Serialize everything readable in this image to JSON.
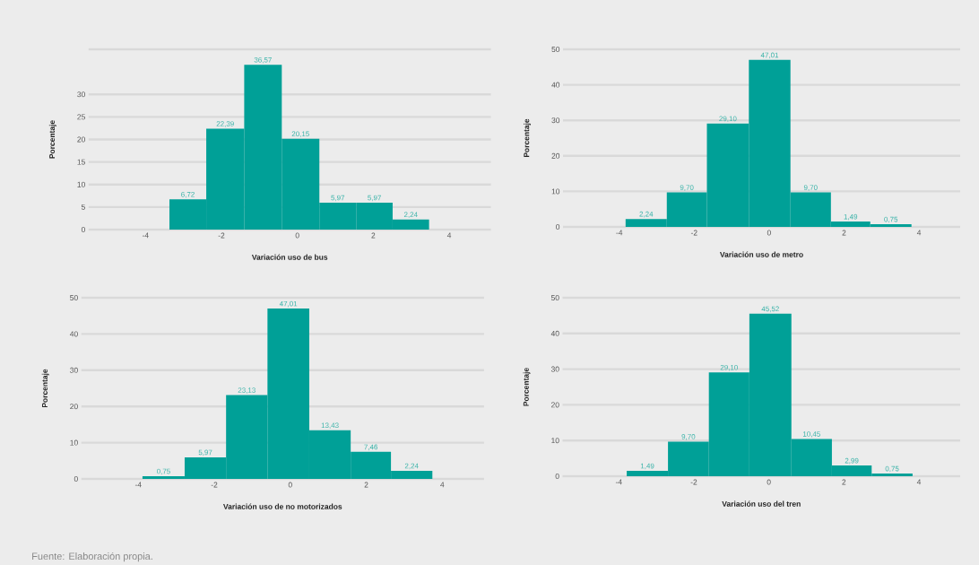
{
  "chart_data": [
    {
      "type": "histogram",
      "xlabel": "Variación uso de bus",
      "ylabel": "Porcentaje",
      "color": "#00a097",
      "grid": "y",
      "xlim": [
        -5.5,
        5.1
      ],
      "ylim": [
        0,
        40
      ],
      "xticks": [
        -4,
        -2,
        0,
        2,
        4
      ],
      "yticks": [
        0,
        5,
        10,
        15,
        20,
        25,
        30,
        {
          "value": 40,
          "label": null
        }
      ],
      "bins": [
        -3.37,
        -2.4,
        -1.4,
        -0.41,
        0.58,
        1.55,
        2.51,
        3.47
      ],
      "values": [
        6.72,
        22.39,
        36.57,
        20.15,
        5.97,
        5.97,
        2.24
      ],
      "value_labels": [
        "6,72",
        "22,39",
        "36,57",
        "20,15",
        "5,97",
        "5,97",
        "2,24"
      ]
    },
    {
      "type": "histogram",
      "xlabel": "Variación uso de metro",
      "ylabel": "Porcentaje",
      "color": "#00a097",
      "grid": "y",
      "xlim": [
        -5.5,
        5.1
      ],
      "ylim": [
        0,
        50
      ],
      "xticks": [
        -4,
        -2,
        0,
        2,
        4
      ],
      "yticks": [
        0,
        10,
        20,
        30,
        40,
        50
      ],
      "bins": [
        -3.83,
        -2.73,
        -1.66,
        -0.54,
        0.57,
        1.65,
        2.7,
        3.8
      ],
      "values": [
        2.24,
        9.7,
        29.1,
        47.01,
        9.7,
        1.49,
        0.75
      ],
      "value_labels": [
        "2,24",
        "9,70",
        "29,10",
        "47,01",
        "9,70",
        "1,49",
        "0,75"
      ]
    },
    {
      "type": "histogram",
      "xlabel": "Variación uso de no motorizados",
      "ylabel": "Porcentaje",
      "color": "#00a097",
      "grid": "y",
      "xlim": [
        -5.5,
        5.1
      ],
      "ylim": [
        0,
        50
      ],
      "xticks": [
        -4,
        -2,
        0,
        2,
        4
      ],
      "yticks": [
        0,
        10,
        20,
        30,
        40,
        50
      ],
      "bins": [
        -3.89,
        -2.78,
        -1.69,
        -0.6,
        0.5,
        1.59,
        2.65,
        3.74
      ],
      "values": [
        0.75,
        5.97,
        23.13,
        47.01,
        13.43,
        7.46,
        2.24
      ],
      "value_labels": [
        "0,75",
        "5,97",
        "23,13",
        "47,01",
        "13,43",
        "7,46",
        "2,24"
      ],
      "annotations": [
        "Fuente: Elaboración propia."
      ]
    },
    {
      "type": "histogram",
      "xlabel": "Variación uso del tren",
      "ylabel": "Porcentaje",
      "color": "#00a097",
      "grid": "y",
      "xlim": [
        -5.5,
        5.1
      ],
      "ylim": [
        0,
        50
      ],
      "xticks": [
        -4,
        -2,
        0,
        2,
        4
      ],
      "yticks": [
        0,
        10,
        20,
        30,
        40,
        50
      ],
      "bins": [
        -3.79,
        -2.69,
        -1.6,
        -0.52,
        0.6,
        1.68,
        2.74,
        3.83
      ],
      "values": [
        1.49,
        9.7,
        29.1,
        45.52,
        10.45,
        2.99,
        0.75
      ],
      "value_labels": [
        "1,49",
        "9,70",
        "29,10",
        "45,52",
        "10,45",
        "2,99",
        "0,75"
      ]
    }
  ]
}
